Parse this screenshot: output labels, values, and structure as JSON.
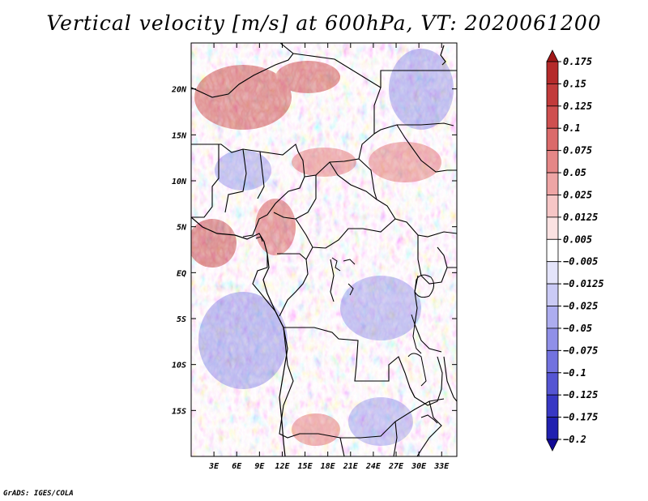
{
  "chart_data": {
    "type": "heatmap",
    "title": "Vertical velocity [m/s] at 600hPa, VT: 2020061200",
    "variable": "Vertical velocity",
    "units": "m/s",
    "level": "600hPa",
    "valid_time": "2020061200",
    "x_ticks": [
      "3E",
      "6E",
      "9E",
      "12E",
      "15E",
      "18E",
      "21E",
      "24E",
      "27E",
      "30E",
      "33E"
    ],
    "x_tick_values": [
      3,
      6,
      9,
      12,
      15,
      18,
      21,
      24,
      27,
      30,
      33
    ],
    "y_ticks": [
      "20N",
      "15N",
      "10N",
      "5N",
      "EQ",
      "5S",
      "10S",
      "15S"
    ],
    "y_tick_values": [
      20,
      15,
      10,
      5,
      0,
      -5,
      -10,
      -15
    ],
    "lon_range": [
      0,
      35
    ],
    "lat_range": [
      -20,
      25
    ],
    "colorbar": {
      "levels": [
        0.175,
        0.15,
        0.125,
        0.1,
        0.075,
        0.05,
        0.025,
        0.0125,
        0.005,
        -0.005,
        -0.0125,
        -0.025,
        -0.05,
        -0.075,
        -0.1,
        -0.125,
        -0.175,
        -0.2
      ],
      "labels": [
        "0.175",
        "0.15",
        "0.125",
        "0.1",
        "0.075",
        "0.05",
        "0.025",
        "0.0125",
        "0.005",
        "−0.005",
        "−0.0125",
        "−0.025",
        "−0.05",
        "−0.075",
        "−0.1",
        "−0.125",
        "−0.175",
        "−0.2"
      ],
      "colors": [
        "#a01818",
        "#b52a2a",
        "#c23b3b",
        "#cf5050",
        "#db6a6a",
        "#e58787",
        "#eea5a5",
        "#f6c6c6",
        "#fbe2e2",
        "#ffffff",
        "#e4e4fa",
        "#cacaf5",
        "#adadef",
        "#9090e8",
        "#7272df",
        "#5555d3",
        "#3838c4",
        "#2020b0",
        "#120a96"
      ]
    }
  },
  "credit": "GrADS: IGES/COLA"
}
